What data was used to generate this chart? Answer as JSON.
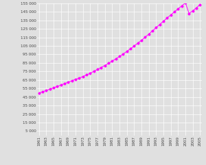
{
  "years": [
    1961,
    1962,
    1963,
    1964,
    1965,
    1966,
    1967,
    1968,
    1969,
    1970,
    1971,
    1972,
    1973,
    1974,
    1975,
    1976,
    1977,
    1978,
    1979,
    1980,
    1981,
    1982,
    1983,
    1984,
    1985,
    1986,
    1987,
    1988,
    1989,
    1990,
    1991,
    1992,
    1993,
    1994,
    1995,
    1996,
    1997,
    1998,
    1999,
    2000,
    2001,
    2002,
    2003,
    2004,
    2005
  ],
  "population": [
    49624,
    51110,
    52631,
    54186,
    55768,
    57377,
    59014,
    60689,
    62412,
    64093,
    65657,
    67218,
    68945,
    70907,
    72973,
    75124,
    77357,
    79673,
    82067,
    84523,
    87079,
    89781,
    92583,
    95482,
    98493,
    101615,
    104838,
    108167,
    111590,
    115120,
    118846,
    122622,
    126399,
    130179,
    133951,
    137688,
    141379,
    144962,
    148455,
    152010,
    155564,
    143049,
    146255,
    149619,
    153578
  ],
  "line_color": "#ff00ff",
  "marker_color": "#ff00ff",
  "bg_color": "#e0e0e0",
  "grid_color": "#ffffff",
  "ylim": [
    0,
    155000
  ],
  "yticks": [
    5000,
    15000,
    25000,
    35000,
    45000,
    55000,
    65000,
    75000,
    85000,
    95000,
    105000,
    115000,
    125000,
    135000,
    145000,
    155000
  ],
  "marker_size": 2.5,
  "line_width": 0.7
}
